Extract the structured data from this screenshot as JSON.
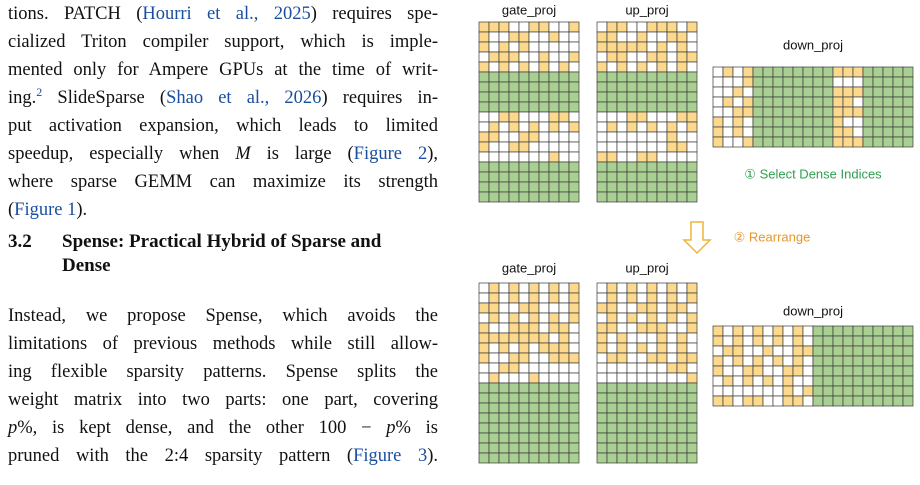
{
  "body": {
    "paragraph_1": [
      [
        {
          "text": "tions. PATCH ("
        },
        {
          "text": "Hourri et al., 2025",
          "style": "link"
        },
        {
          "text": ") requires spe-"
        }
      ],
      [
        {
          "text": "cialized Triton compiler support, which is imple-"
        }
      ],
      [
        {
          "text": "mented only for Ampere GPUs at the time of writ-"
        }
      ],
      [
        {
          "text": "ing."
        },
        {
          "text": "2",
          "style": "sup"
        },
        {
          "text": " SlideSparse ("
        },
        {
          "text": "Shao et al., 2026",
          "style": "link"
        },
        {
          "text": ") requires in-"
        }
      ],
      [
        {
          "text": "put activation expansion, which leads to limited"
        }
      ],
      [
        {
          "text": "speedup, especially when "
        },
        {
          "text": "M",
          "style": "math"
        },
        {
          "text": " is large ("
        },
        {
          "text": "Figure 2",
          "style": "link"
        },
        {
          "text": "),"
        }
      ],
      [
        {
          "text": "where sparse GEMM can maximize its strength"
        }
      ],
      [
        {
          "text": "("
        },
        {
          "text": "Figure 1",
          "style": "link"
        },
        {
          "text": ")."
        }
      ]
    ],
    "heading": {
      "number": "3.2",
      "title_lines": [
        "Spense: Practical Hybrid of Sparse and",
        "Dense"
      ]
    },
    "paragraph_2": [
      [
        {
          "text": "Instead, we propose Spense, which avoids the"
        }
      ],
      [
        {
          "text": "limitations of previous methods while still allow-"
        }
      ],
      [
        {
          "text": "ing flexible sparsity patterns. Spense splits the"
        }
      ],
      [
        {
          "text": "weight matrix into two parts: one part, covering"
        }
      ],
      [
        {
          "text": "p",
          "style": "math"
        },
        {
          "text": "%, is kept dense, and the other 100 − "
        },
        {
          "text": "p",
          "style": "math"
        },
        {
          "text": "% is"
        }
      ],
      [
        {
          "text": "pruned with the 2:4 sparsity pattern ("
        },
        {
          "text": "Figure 3",
          "style": "link"
        },
        {
          "text": ")."
        }
      ]
    ]
  },
  "figure": {
    "top": {
      "gate": "gate_proj",
      "up": "up_proj",
      "down": "down_proj"
    },
    "step_1": "① Select Dense Indices",
    "step_2": "② Rearrange",
    "bottom": {
      "gate": "gate_proj",
      "up": "up_proj",
      "down": "down_proj"
    }
  }
}
